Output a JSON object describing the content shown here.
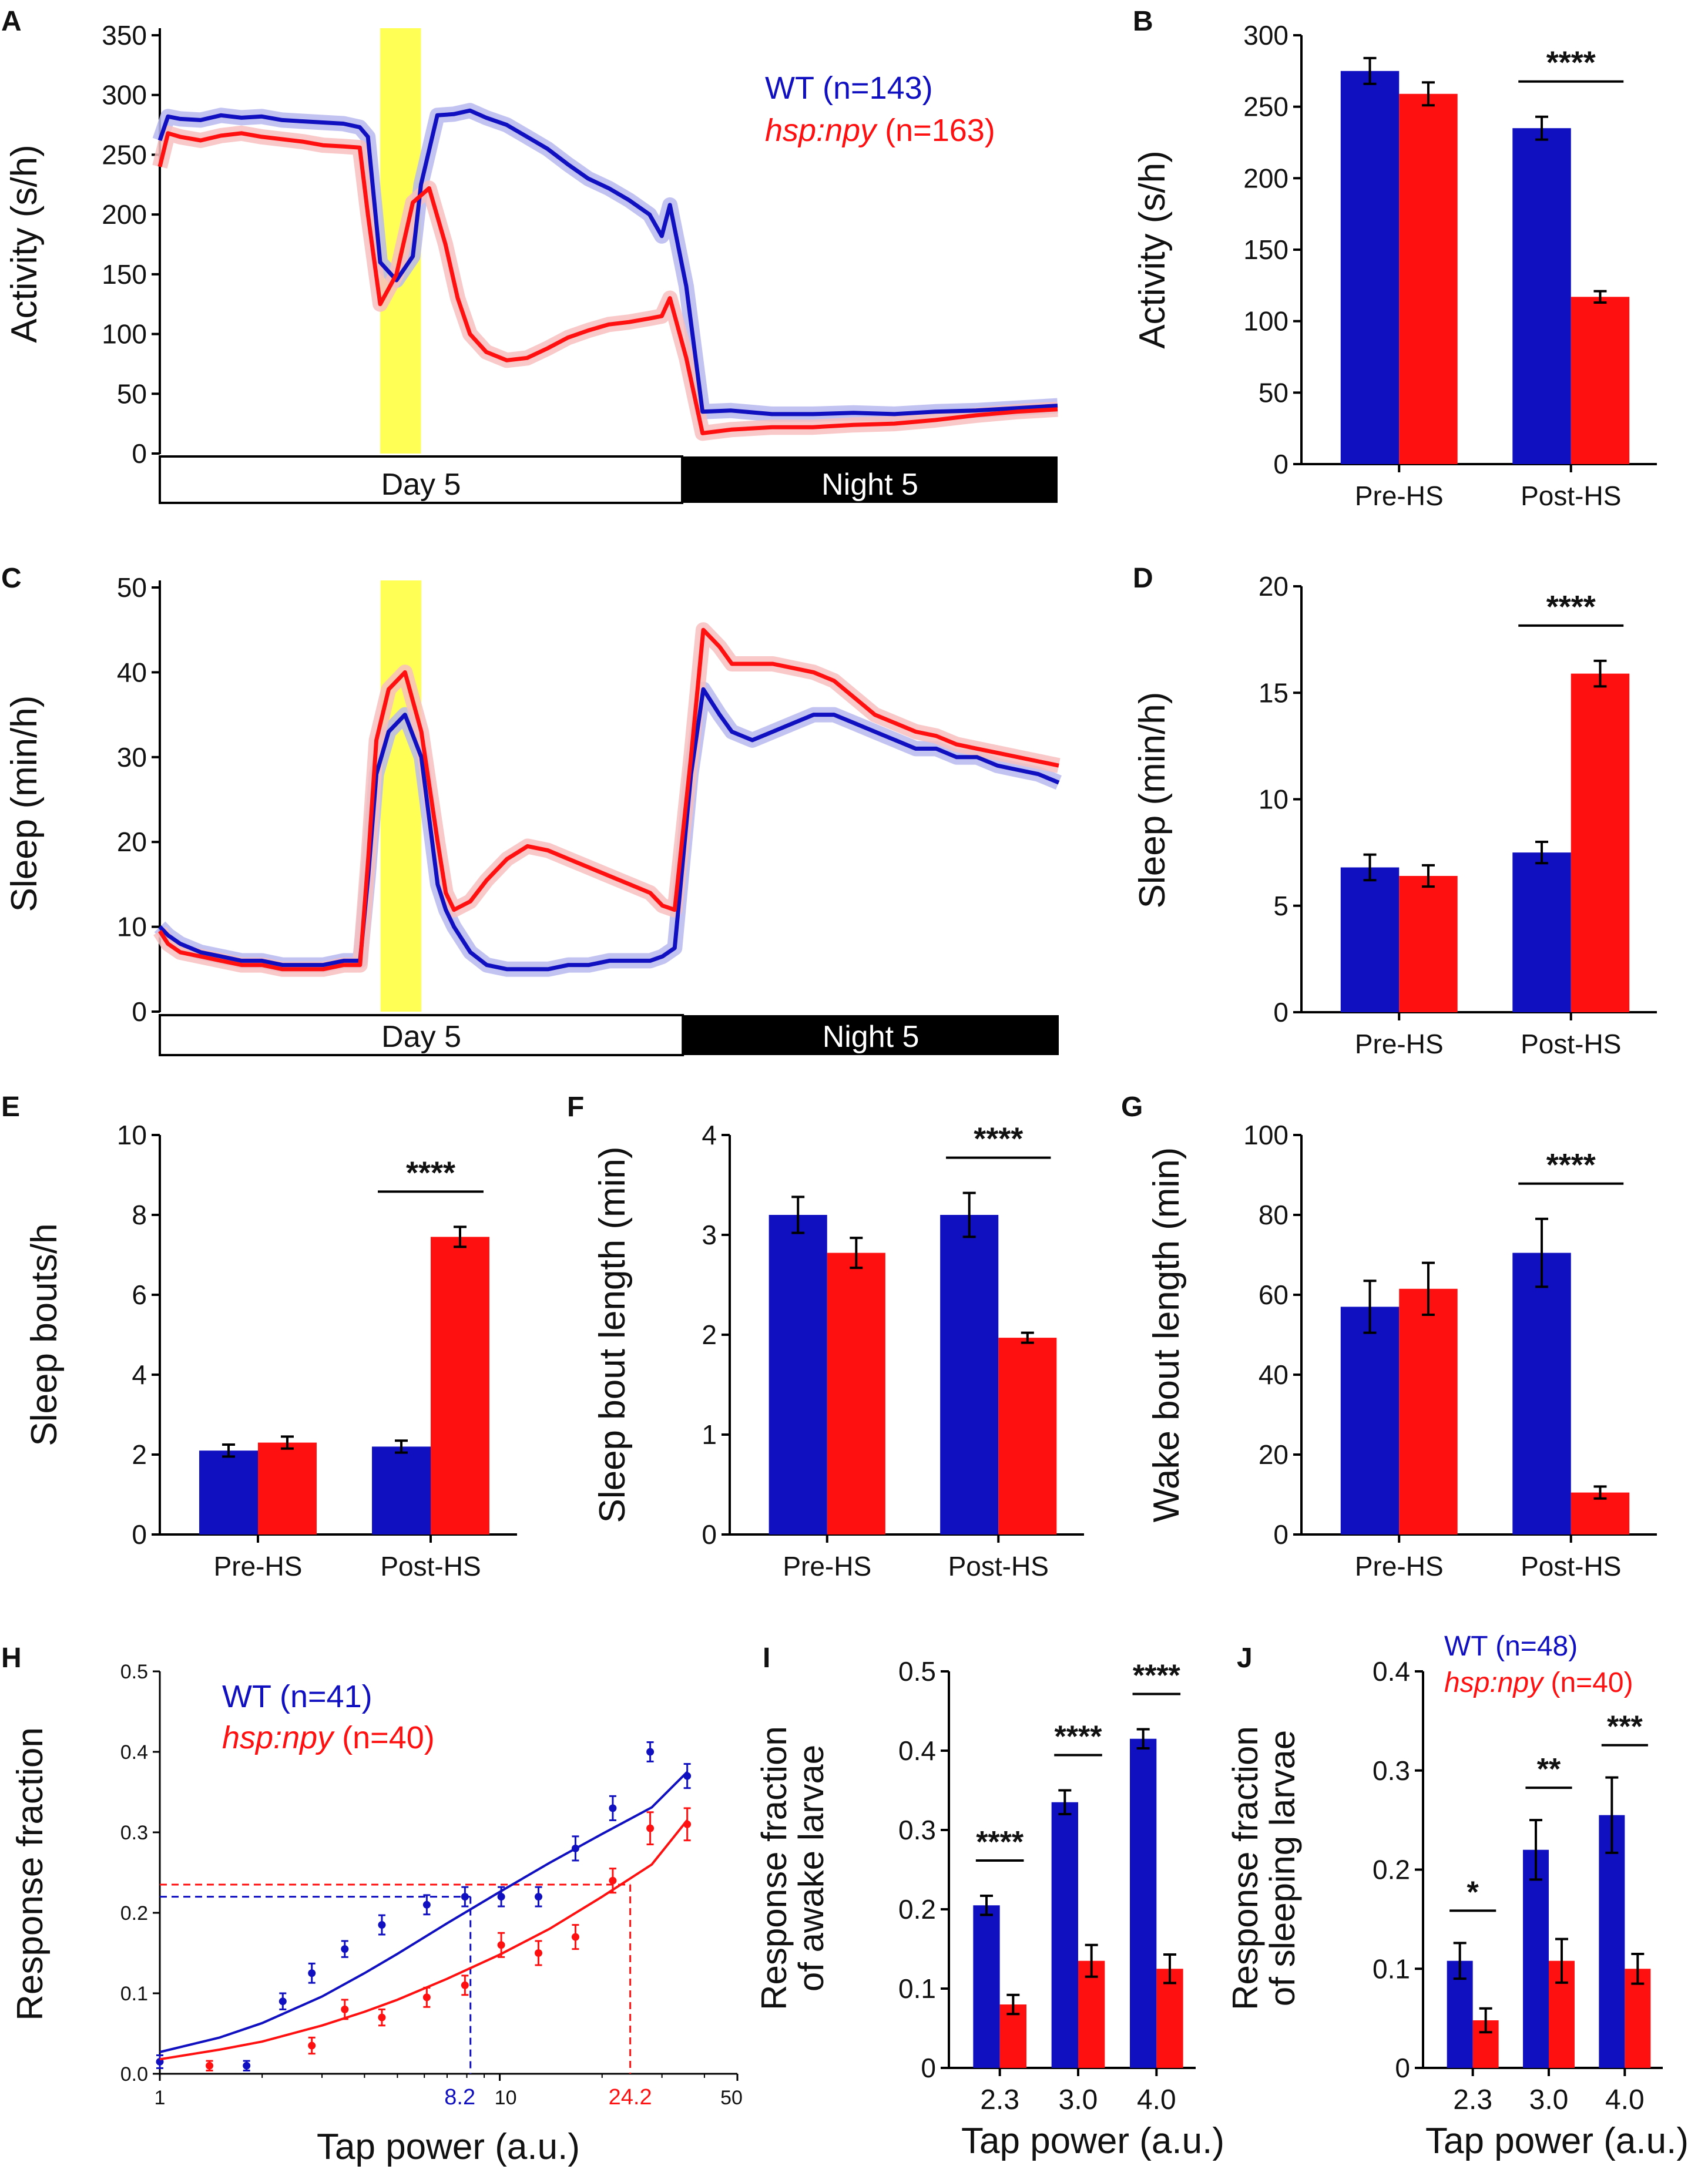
{
  "colors": {
    "wt": "#1010c0",
    "hsp": "#ff1010",
    "wt_band": "#b8b8f0",
    "hsp_band": "#f8c0c0",
    "hs_bar": "#ffff55"
  },
  "chart_data": [
    {
      "panel": "A",
      "type": "line",
      "ylabel": "Activity (s/h)",
      "ylim": [
        0,
        350
      ],
      "yticks": [
        0,
        50,
        100,
        150,
        200,
        250,
        300,
        350
      ],
      "xlim": [
        0,
        22
      ],
      "hs_window": [
        5.4,
        6.4
      ],
      "day_label": "Day 5",
      "night_label": "Night 5",
      "night_start": 12.8,
      "legend": [
        {
          "name": "WT",
          "rest": " (n=143)"
        },
        {
          "name": "hsp:npy",
          "rest": " (n=163)"
        }
      ],
      "series": [
        {
          "name": "WT",
          "x": [
            0,
            0.2,
            0.5,
            1,
            1.5,
            2,
            2.5,
            3,
            3.5,
            4,
            4.5,
            4.9,
            5.1,
            5.4,
            5.8,
            6.2,
            6.4,
            6.8,
            7.2,
            7.6,
            8.0,
            8.5,
            9,
            9.5,
            10,
            10.5,
            11,
            11.5,
            12,
            12.3,
            12.5,
            12.9,
            13.3,
            14,
            15,
            16,
            17,
            18,
            19,
            20,
            21,
            22
          ],
          "y": [
            262,
            282,
            280,
            279,
            283,
            281,
            282,
            279,
            278,
            277,
            276,
            273,
            265,
            160,
            145,
            165,
            225,
            283,
            284,
            287,
            281,
            275,
            265,
            255,
            242,
            230,
            222,
            212,
            200,
            182,
            208,
            140,
            35,
            36,
            33,
            33,
            34,
            33,
            35,
            36,
            38,
            40
          ]
        },
        {
          "name": "hsp:npy",
          "x": [
            0,
            0.2,
            0.5,
            1,
            1.5,
            2,
            2.5,
            3,
            3.5,
            4,
            4.5,
            4.9,
            5.1,
            5.4,
            5.8,
            6.2,
            6.6,
            7.0,
            7.3,
            7.6,
            8.0,
            8.5,
            9,
            9.5,
            10,
            10.5,
            11,
            11.5,
            12,
            12.3,
            12.5,
            12.9,
            13.3,
            14,
            15,
            16,
            17,
            18,
            19,
            20,
            21,
            22
          ],
          "y": [
            240,
            268,
            265,
            262,
            266,
            268,
            265,
            263,
            261,
            258,
            257,
            256,
            200,
            125,
            150,
            210,
            222,
            175,
            130,
            100,
            85,
            78,
            80,
            88,
            97,
            103,
            108,
            110,
            113,
            115,
            130,
            80,
            17,
            20,
            22,
            22,
            24,
            25,
            28,
            32,
            35,
            37
          ]
        }
      ]
    },
    {
      "panel": "B",
      "type": "bar",
      "ylabel": "Activity (s/h)",
      "ylim": [
        0,
        300
      ],
      "yticks": [
        0,
        50,
        100,
        150,
        200,
        250,
        300
      ],
      "categories": [
        "Pre-HS",
        "Post-HS"
      ],
      "series": [
        {
          "name": "WT",
          "values": [
            275,
            235
          ],
          "err": [
            9,
            8
          ]
        },
        {
          "name": "hsp:npy",
          "values": [
            259,
            117
          ],
          "err": [
            8,
            4
          ]
        }
      ],
      "sig": [
        "",
        "****"
      ]
    },
    {
      "panel": "C",
      "type": "line",
      "ylabel": "Sleep (min/h)",
      "ylim": [
        0,
        50
      ],
      "yticks": [
        0,
        10,
        20,
        30,
        40,
        50
      ],
      "xlim": [
        0,
        22
      ],
      "hs_window": [
        5.4,
        6.4
      ],
      "day_label": "Day 5",
      "night_label": "Night 5",
      "night_start": 12.8,
      "series": [
        {
          "name": "WT",
          "x": [
            0,
            0.2,
            0.5,
            1,
            1.5,
            2,
            2.5,
            3,
            3.5,
            4,
            4.5,
            4.9,
            5.1,
            5.3,
            5.6,
            6.0,
            6.4,
            6.8,
            7.0,
            7.2,
            7.6,
            8.0,
            8.5,
            9,
            9.5,
            10,
            10.5,
            11,
            11.5,
            12,
            12.3,
            12.6,
            13.0,
            13.3,
            13.7,
            14,
            14.5,
            15,
            15.5,
            16,
            16.5,
            17,
            17.5,
            18,
            18.5,
            19,
            19.5,
            20,
            20.5,
            21,
            21.5,
            22
          ],
          "y": [
            10,
            9,
            8,
            7,
            6.5,
            6,
            6,
            5.5,
            5.5,
            5.5,
            6,
            6,
            16,
            28,
            33,
            35,
            30,
            15,
            12,
            10,
            7,
            5.5,
            5,
            5,
            5,
            5.5,
            5.5,
            6,
            6,
            6,
            6.5,
            7.5,
            28,
            38,
            35,
            33,
            32,
            33,
            34,
            35,
            35,
            34,
            33,
            32,
            31,
            31,
            30,
            30,
            29,
            28.5,
            28,
            27
          ]
        },
        {
          "name": "hsp:npy",
          "x": [
            0,
            0.2,
            0.5,
            1,
            1.5,
            2,
            2.5,
            3,
            3.5,
            4,
            4.5,
            4.9,
            5.1,
            5.3,
            5.6,
            6.0,
            6.4,
            6.8,
            7.0,
            7.2,
            7.6,
            8.0,
            8.5,
            9,
            9.5,
            10,
            10.5,
            11,
            11.5,
            12,
            12.3,
            12.6,
            13.0,
            13.3,
            13.7,
            14,
            14.5,
            15,
            15.5,
            16,
            16.5,
            17,
            17.5,
            18,
            18.5,
            19,
            19.5,
            20,
            20.5,
            21,
            21.5,
            22
          ],
          "y": [
            9.5,
            8,
            7,
            6.5,
            6,
            5.5,
            5.5,
            5,
            5,
            5,
            5.5,
            5.5,
            18,
            32,
            38,
            40,
            33,
            20,
            14,
            12,
            13,
            15.5,
            18,
            19.5,
            19,
            18,
            17,
            16,
            15,
            14,
            12.5,
            12,
            30,
            45,
            43,
            41,
            41,
            41,
            40.5,
            40,
            39,
            37,
            35,
            34,
            33,
            32.5,
            31.5,
            31,
            30.5,
            30,
            29.5,
            29
          ]
        }
      ]
    },
    {
      "panel": "D",
      "type": "bar",
      "ylabel": "Sleep (min/h)",
      "ylim": [
        0,
        20
      ],
      "yticks": [
        0,
        5,
        10,
        15,
        20
      ],
      "categories": [
        "Pre-HS",
        "Post-HS"
      ],
      "series": [
        {
          "name": "WT",
          "values": [
            6.8,
            7.5
          ],
          "err": [
            0.6,
            0.5
          ]
        },
        {
          "name": "hsp:npy",
          "values": [
            6.4,
            15.9
          ],
          "err": [
            0.5,
            0.6
          ]
        }
      ],
      "sig": [
        "",
        "****"
      ]
    },
    {
      "panel": "E",
      "type": "bar",
      "ylabel": "Sleep bouts/h",
      "ylim": [
        0,
        10
      ],
      "yticks": [
        0,
        2,
        4,
        6,
        8,
        10
      ],
      "categories": [
        "Pre-HS",
        "Post-HS"
      ],
      "series": [
        {
          "name": "WT",
          "values": [
            2.1,
            2.2
          ],
          "err": [
            0.15,
            0.15
          ]
        },
        {
          "name": "hsp:npy",
          "values": [
            2.3,
            7.45
          ],
          "err": [
            0.15,
            0.25
          ]
        }
      ],
      "sig": [
        "",
        "****"
      ]
    },
    {
      "panel": "F",
      "type": "bar",
      "ylabel": "Sleep bout length (min)",
      "ylim": [
        0,
        4
      ],
      "yticks": [
        0,
        1,
        2,
        3,
        4
      ],
      "categories": [
        "Pre-HS",
        "Post-HS"
      ],
      "series": [
        {
          "name": "WT",
          "values": [
            3.2,
            3.2
          ],
          "err": [
            0.18,
            0.22
          ]
        },
        {
          "name": "hsp:npy",
          "values": [
            2.82,
            1.97
          ],
          "err": [
            0.15,
            0.05
          ]
        }
      ],
      "sig": [
        "",
        "****"
      ]
    },
    {
      "panel": "G",
      "type": "bar",
      "ylabel": "Wake bout length (min)",
      "ylim": [
        0,
        100
      ],
      "yticks": [
        0,
        20,
        40,
        60,
        80,
        100
      ],
      "categories": [
        "Pre-HS",
        "Post-HS"
      ],
      "series": [
        {
          "name": "WT",
          "values": [
            57,
            70.5
          ],
          "err": [
            6.5,
            8.5
          ]
        },
        {
          "name": "hsp:npy",
          "values": [
            61.5,
            10.5
          ],
          "err": [
            6.5,
            1.5
          ]
        }
      ],
      "sig": [
        "",
        "****"
      ]
    },
    {
      "panel": "H",
      "type": "scatter",
      "xscale": "log",
      "xlim": [
        1,
        50
      ],
      "ylim": [
        0,
        0.5
      ],
      "ylabel": "Response fraction",
      "xlabel": "Tap power (a.u.)",
      "xticks": [
        "1",
        "10",
        "50"
      ],
      "yticks": [
        "0.0",
        "0.1",
        "0.2",
        "0.3",
        "0.4",
        "0.5"
      ],
      "legend": [
        {
          "name": "WT",
          "rest": " (n=41)"
        },
        {
          "name": "hsp:npy",
          "rest": " (n=40)"
        }
      ],
      "annotations": [
        "8.2",
        "24.2"
      ],
      "ec50": [
        8.2,
        24.2
      ],
      "ec50_y": [
        0.22,
        0.235
      ],
      "series": [
        {
          "name": "WT",
          "x": [
            1,
            1.8,
            2.3,
            2.8,
            3.5,
            4.5,
            6.1,
            7.9,
            10.1,
            13,
            16.7,
            21.5,
            27.7,
            35.6
          ],
          "y": [
            0.015,
            0.01,
            0.09,
            0.125,
            0.155,
            0.185,
            0.21,
            0.22,
            0.22,
            0.22,
            0.28,
            0.33,
            0.4,
            0.37
          ],
          "err": [
            0.008,
            0.006,
            0.01,
            0.012,
            0.01,
            0.012,
            0.012,
            0.012,
            0.012,
            0.012,
            0.015,
            0.015,
            0.012,
            0.015
          ],
          "fit_x": [
            1,
            1.5,
            2,
            3,
            4,
            5,
            7,
            10,
            14,
            20,
            28,
            35.6
          ],
          "fit_y": [
            0.027,
            0.045,
            0.063,
            0.096,
            0.125,
            0.149,
            0.187,
            0.226,
            0.262,
            0.298,
            0.331,
            0.375
          ]
        },
        {
          "name": "hsp:npy",
          "x": [
            1.4,
            2.8,
            3.5,
            4.5,
            6.1,
            7.9,
            10.1,
            13,
            16.7,
            21.5,
            27.7,
            35.6
          ],
          "y": [
            0.01,
            0.035,
            0.08,
            0.07,
            0.095,
            0.11,
            0.16,
            0.15,
            0.17,
            0.24,
            0.305,
            0.31
          ],
          "err": [
            0.006,
            0.01,
            0.012,
            0.01,
            0.012,
            0.012,
            0.015,
            0.015,
            0.015,
            0.015,
            0.02,
            0.02
          ],
          "fit_x": [
            1,
            1.5,
            2,
            3,
            4,
            5,
            7,
            10,
            14,
            20,
            28,
            35.6
          ],
          "fit_y": [
            0.018,
            0.03,
            0.04,
            0.06,
            0.077,
            0.092,
            0.118,
            0.148,
            0.18,
            0.22,
            0.26,
            0.315
          ]
        }
      ]
    },
    {
      "panel": "I",
      "type": "bar",
      "ylabel": [
        "Response fraction",
        "of awake larvae"
      ],
      "xlabel": "Tap power (a.u.)",
      "ylim": [
        0,
        0.5
      ],
      "yticks": [
        "0",
        "0.1",
        "0.2",
        "0.3",
        "0.4",
        "0.5"
      ],
      "categories": [
        "2.3",
        "3.0",
        "4.0"
      ],
      "series": [
        {
          "name": "WT",
          "values": [
            0.205,
            0.335,
            0.415
          ],
          "err": [
            0.012,
            0.015,
            0.012
          ]
        },
        {
          "name": "hsp:npy",
          "values": [
            0.08,
            0.135,
            0.125
          ],
          "err": [
            0.012,
            0.02,
            0.018
          ]
        }
      ],
      "sig": [
        "****",
        "****",
        "****"
      ]
    },
    {
      "panel": "J",
      "type": "bar",
      "ylabel": [
        "Response fraction",
        "of sleeping larvae"
      ],
      "xlabel": "Tap power (a.u.)",
      "ylim": [
        0,
        0.4
      ],
      "yticks": [
        "0",
        "0.1",
        "0.2",
        "0.3",
        "0.4"
      ],
      "categories": [
        "2.3",
        "3.0",
        "4.0"
      ],
      "legend": [
        {
          "name": "WT",
          "rest": " (n=48)"
        },
        {
          "name": "hsp:npy",
          "rest": " (n=40)"
        }
      ],
      "series": [
        {
          "name": "WT",
          "values": [
            0.108,
            0.22,
            0.255
          ],
          "err": [
            0.018,
            0.03,
            0.038
          ]
        },
        {
          "name": "hsp:npy",
          "values": [
            0.048,
            0.108,
            0.1
          ],
          "err": [
            0.012,
            0.022,
            0.015
          ]
        }
      ],
      "sig": [
        "*",
        "**",
        "***"
      ]
    }
  ]
}
